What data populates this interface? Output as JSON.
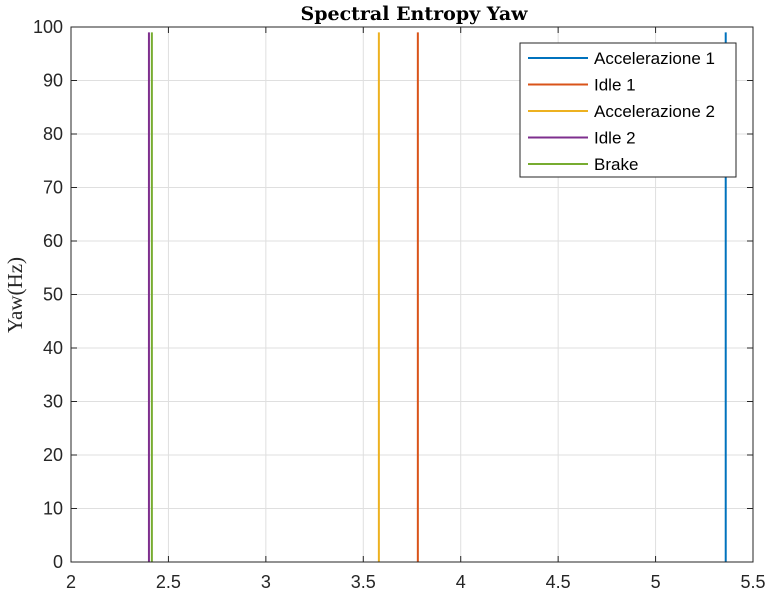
{
  "chart_data": {
    "type": "line",
    "title": "Spectral Entropy Yaw",
    "xlabel": "",
    "ylabel": "Yaw(Hz)",
    "xlim": [
      2,
      5.5
    ],
    "ylim": [
      0,
      100
    ],
    "xticks": [
      "2",
      "2.5",
      "3",
      "3.5",
      "4",
      "4.5",
      "5",
      "5.5"
    ],
    "yticks": [
      "0",
      "10",
      "20",
      "30",
      "40",
      "50",
      "60",
      "70",
      "80",
      "90",
      "100"
    ],
    "grid": true,
    "legend_position": "top-right",
    "series": [
      {
        "name": "Accelerazione 1",
        "color": "#0072BD",
        "x": [
          5.36,
          5.36
        ],
        "y": [
          0,
          99
        ]
      },
      {
        "name": "Idle 1",
        "color": "#D95319",
        "x": [
          3.78,
          3.78
        ],
        "y": [
          0,
          99
        ]
      },
      {
        "name": "Accelerazione 2",
        "color": "#EDB120",
        "x": [
          3.58,
          3.58
        ],
        "y": [
          0,
          99
        ]
      },
      {
        "name": "Idle 2",
        "color": "#7E2F8E",
        "x": [
          2.4,
          2.4
        ],
        "y": [
          0,
          99
        ]
      },
      {
        "name": "Brake",
        "color": "#77AC30",
        "x": [
          2.415,
          2.415
        ],
        "y": [
          0,
          99
        ]
      }
    ]
  }
}
